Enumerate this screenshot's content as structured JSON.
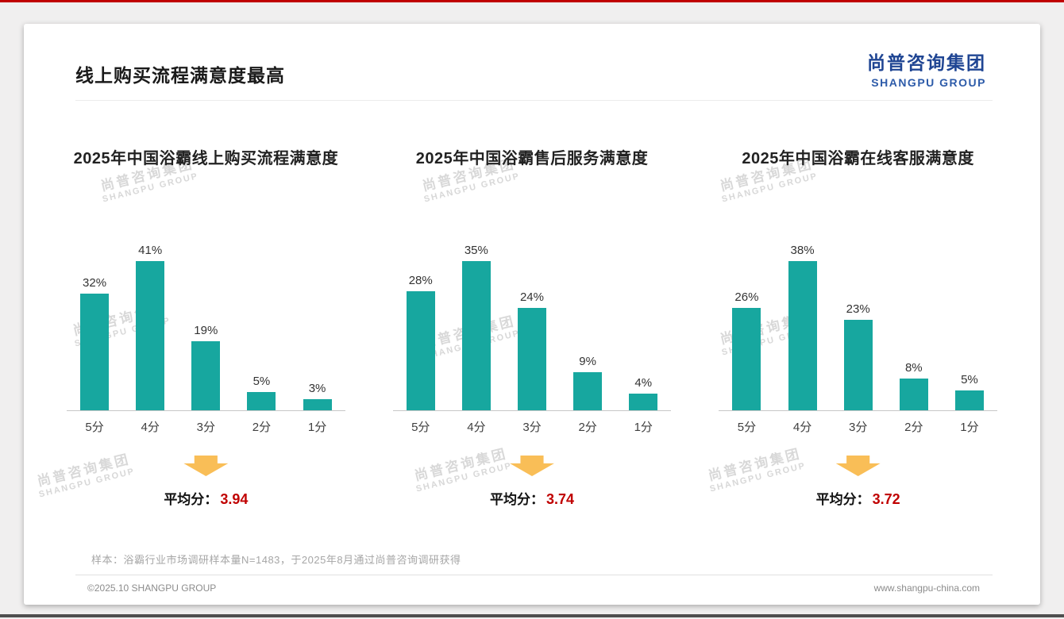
{
  "page": {
    "title": "线上购买流程满意度最高",
    "logo": {
      "cn": "尚普咨询集团",
      "en": "SHANGPU GROUP"
    },
    "watermark": {
      "cn": "尚普咨询集团",
      "en": "SHANGPU GROUP"
    },
    "footer": {
      "sample_note": "样本：浴霸行业市场调研样本量N=1483，于2025年8月通过尚普咨询调研获得",
      "copyright": "©2025.10 SHANGPU GROUP",
      "website": "www.shangpu-china.com"
    },
    "colors": {
      "bar": "#17A79F",
      "arrow": "#F9BE57",
      "accent_red": "#C00000",
      "logo_cn_blue": "#1F4593",
      "logo_en_blue": "#2D5BA9"
    }
  },
  "chart_data": [
    {
      "type": "bar",
      "title": "2025年中国浴霸线上购买流程满意度",
      "categories": [
        "5分",
        "4分",
        "3分",
        "2分",
        "1分"
      ],
      "values": [
        32,
        41,
        19,
        5,
        3
      ],
      "value_suffix": "%",
      "xlabel": "",
      "ylabel": "",
      "ylim": [
        0,
        45
      ],
      "grid": false,
      "legend": "none",
      "average_label": "平均分：",
      "average": "3.94"
    },
    {
      "type": "bar",
      "title": "2025年中国浴霸售后服务满意度",
      "categories": [
        "5分",
        "4分",
        "3分",
        "2分",
        "1分"
      ],
      "values": [
        28,
        35,
        24,
        9,
        4
      ],
      "value_suffix": "%",
      "xlabel": "",
      "ylabel": "",
      "ylim": [
        0,
        40
      ],
      "grid": false,
      "legend": "none",
      "average_label": "平均分：",
      "average": "3.74"
    },
    {
      "type": "bar",
      "title": "2025年中国浴霸在线客服满意度",
      "categories": [
        "5分",
        "4分",
        "3分",
        "2分",
        "1分"
      ],
      "values": [
        26,
        38,
        23,
        8,
        5
      ],
      "value_suffix": "%",
      "xlabel": "",
      "ylabel": "",
      "ylim": [
        0,
        42
      ],
      "grid": false,
      "legend": "none",
      "average_label": "平均分：",
      "average": "3.72"
    }
  ]
}
